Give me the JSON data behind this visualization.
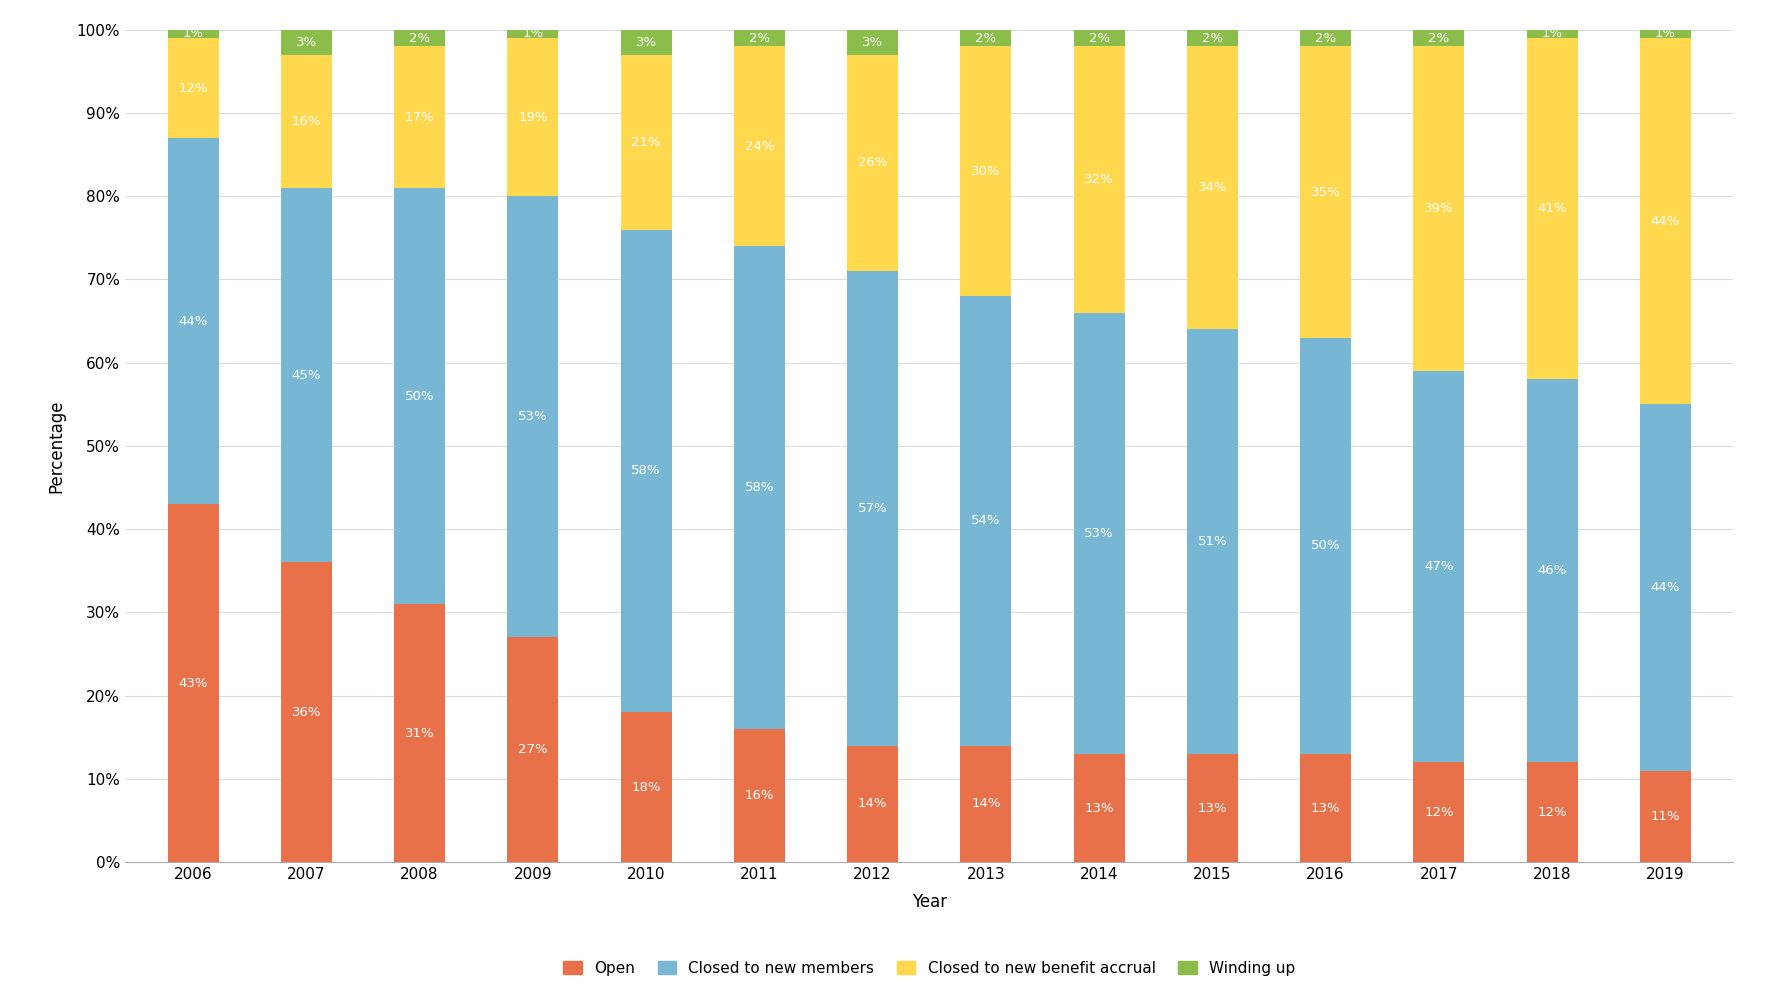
{
  "years": [
    2006,
    2007,
    2008,
    2009,
    2010,
    2011,
    2012,
    2013,
    2014,
    2015,
    2016,
    2017,
    2018,
    2019
  ],
  "open": [
    43,
    36,
    31,
    27,
    18,
    16,
    14,
    14,
    13,
    13,
    13,
    12,
    12,
    11
  ],
  "closed_new": [
    44,
    45,
    50,
    53,
    58,
    58,
    57,
    54,
    53,
    51,
    50,
    47,
    46,
    44
  ],
  "closed_accrual": [
    12,
    16,
    17,
    19,
    21,
    24,
    26,
    30,
    32,
    34,
    35,
    39,
    41,
    44
  ],
  "winding_up": [
    1,
    3,
    2,
    1,
    3,
    2,
    3,
    2,
    2,
    2,
    2,
    2,
    1,
    1
  ],
  "colors": {
    "open": "#E8714A",
    "closed_new": "#77B7D4",
    "closed_accrual": "#FFD84D",
    "winding_up": "#8BBD4A"
  },
  "xlabel": "Year",
  "ylabel": "Percentage",
  "legend_labels": [
    "Open",
    "Closed to new members",
    "Closed to new benefit accrual",
    "Winding up"
  ],
  "background_color": "#FFFFFF",
  "grid_color": "#DDDDDD",
  "ylim": [
    0,
    100
  ],
  "figsize": [
    17.87,
    9.91
  ],
  "dpi": 100,
  "bar_width": 0.45,
  "label_fontsize": 9.5,
  "axis_fontsize": 11,
  "xlabel_fontsize": 12,
  "ylabel_fontsize": 12
}
